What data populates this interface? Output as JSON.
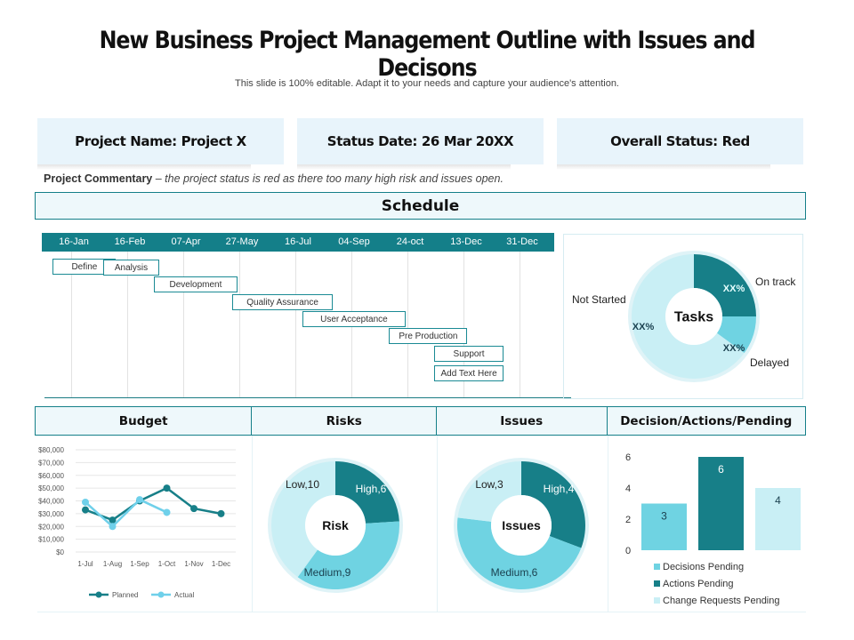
{
  "title": "New Business Project Management Outline with Issues and Decisons",
  "subtitle": "This slide is 100% editable. Adapt it to your needs and capture your audience's attention.",
  "cards": {
    "project_name": "Project Name: Project X",
    "status_date": "Status Date: 26 Mar 20XX",
    "overall_status": "Overall Status: Red"
  },
  "commentary": {
    "label": "Project Commentary",
    "text": " – the project status is red as there too many high risk and issues open."
  },
  "schedule": {
    "heading": "Schedule",
    "timeline": [
      "16-Jan",
      "16-Feb",
      "07-Apr",
      "27-May",
      "16-Jul",
      "04-Sep",
      "24-oct",
      "13-Dec",
      "31-Dec"
    ],
    "tasks": [
      {
        "label": "Define",
        "start": 0.1,
        "end": 1.23
      },
      {
        "label": "Analysis",
        "start": 1.0,
        "end": 2.0
      },
      {
        "label": "Development",
        "start": 1.9,
        "end": 3.4
      },
      {
        "label": "Quality Assurance",
        "start": 3.3,
        "end": 5.1
      },
      {
        "label": "User Acceptance",
        "start": 4.55,
        "end": 6.4
      },
      {
        "label": "Pre Production",
        "start": 6.1,
        "end": 7.5
      },
      {
        "label": "Support",
        "start": 6.9,
        "end": 8.15
      },
      {
        "label": "Add Text Here",
        "start": 6.9,
        "end": 8.15
      }
    ]
  },
  "headers": {
    "budget": "Budget",
    "risks": "Risks",
    "issues": "Issues",
    "decisions": "Decision/Actions/Pending"
  },
  "colors": {
    "dark_teal": "#177f88",
    "mid_cyan": "#6fd3e2",
    "light_cyan": "#c9eff5",
    "actual_line": "#6fd0ea"
  },
  "chart_data": [
    {
      "type": "pie",
      "center_label": "Tasks",
      "slices": [
        {
          "label": "On track",
          "value_label": "XX%",
          "value": 25
        },
        {
          "label": "Delayed",
          "value_label": "XX%",
          "value": 10
        },
        {
          "label": "Not Started",
          "value_label": "XX%",
          "value": 65
        }
      ]
    },
    {
      "type": "line",
      "categories": [
        "1-Jul",
        "1-Aug",
        "1-Sep",
        "1-Oct",
        "1-Nov",
        "1-Dec"
      ],
      "ylim": [
        0,
        80000
      ],
      "yticks": [
        "$0",
        "$10,000",
        "$20,000",
        "$30,000",
        "$40,000",
        "$50,000",
        "$60,000",
        "$70,000",
        "$80,000"
      ],
      "series": [
        {
          "name": "Planned",
          "values": [
            33000,
            25000,
            40000,
            50000,
            34000,
            30000
          ]
        },
        {
          "name": "Actual",
          "values": [
            39000,
            20000,
            41000,
            31000,
            null,
            null
          ]
        }
      ],
      "legend": "bottom",
      "grid": true
    },
    {
      "type": "pie",
      "center_label": "Risk",
      "slices": [
        {
          "label": "High,6",
          "value": 6
        },
        {
          "label": "Medium,9",
          "value": 9
        },
        {
          "label": "Low,10",
          "value": 10
        }
      ]
    },
    {
      "type": "pie",
      "center_label": "Issues",
      "slices": [
        {
          "label": "High,4",
          "value": 4
        },
        {
          "label": "Medium,6",
          "value": 6
        },
        {
          "label": "Low,3",
          "value": 3
        }
      ]
    },
    {
      "type": "bar",
      "categories": [
        "Decisions Pending",
        "Actions Pending",
        "Change Requests Pending"
      ],
      "values": [
        3,
        6,
        4
      ],
      "yticks": [
        "0",
        "2",
        "4",
        "6"
      ],
      "ylim": [
        0,
        6
      ],
      "legend": "bottom"
    }
  ]
}
